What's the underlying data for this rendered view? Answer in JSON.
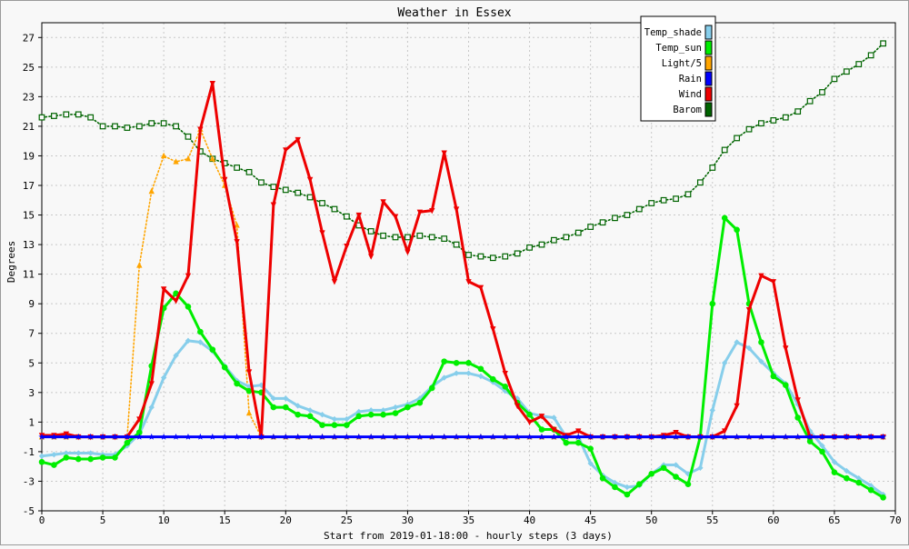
{
  "chart_data": {
    "type": "line",
    "title": "Weather in Essex",
    "xlabel": "Start from 2019-01-18:00 - hourly steps (3 days)",
    "ylabel": "Degrees",
    "xlim": [
      0,
      70
    ],
    "ylim": [
      -5,
      28
    ],
    "grid": true,
    "legend_position": "top-right",
    "x_ticks": [
      0,
      5,
      10,
      15,
      20,
      25,
      30,
      35,
      40,
      45,
      50,
      55,
      60,
      65,
      70
    ],
    "y_ticks": [
      -5,
      -3,
      -1,
      1,
      3,
      5,
      7,
      9,
      11,
      13,
      15,
      17,
      19,
      21,
      23,
      25,
      27
    ],
    "x": [
      0,
      1,
      2,
      3,
      4,
      5,
      6,
      7,
      8,
      9,
      10,
      11,
      12,
      13,
      14,
      15,
      16,
      17,
      18,
      19,
      20,
      21,
      22,
      23,
      24,
      25,
      26,
      27,
      28,
      29,
      30,
      31,
      32,
      33,
      34,
      35,
      36,
      37,
      38,
      39,
      40,
      41,
      42,
      43,
      44,
      45,
      46,
      47,
      48,
      49,
      50,
      51,
      52,
      53,
      54,
      55,
      56,
      57,
      58,
      59,
      60,
      61,
      62,
      63,
      64,
      65,
      66,
      67,
      68,
      69
    ],
    "series": [
      {
        "name": "Temp_shade",
        "color": "#87ceeb",
        "marker": "diamond",
        "line": "solid",
        "values": [
          -1.3,
          -1.2,
          -1.1,
          -1.1,
          -1.1,
          -1.2,
          -1.2,
          -0.6,
          0.2,
          2.0,
          4.0,
          5.5,
          6.5,
          6.4,
          5.8,
          4.8,
          3.8,
          3.4,
          3.5,
          2.6,
          2.6,
          2.1,
          1.8,
          1.5,
          1.2,
          1.2,
          1.7,
          1.8,
          1.8,
          2.0,
          2.2,
          2.6,
          3.4,
          4.0,
          4.3,
          4.3,
          4.1,
          3.7,
          3.1,
          2.6,
          1.6,
          1.4,
          1.3,
          0.0,
          0.0,
          -1.8,
          -2.6,
          -3.1,
          -3.4,
          -3.3,
          -2.5,
          -1.9,
          -1.9,
          -2.5,
          -2.1,
          1.8,
          5.0,
          6.4,
          6.0,
          5.1,
          4.3,
          3.6,
          2.2,
          0.4,
          -0.6,
          -1.7,
          -2.3,
          -2.8,
          -3.3,
          -3.9
        ]
      },
      {
        "name": "Temp_sun",
        "color": "#00ee00",
        "marker": "circle",
        "line": "solid",
        "values": [
          -1.7,
          -1.9,
          -1.4,
          -1.5,
          -1.5,
          -1.4,
          -1.4,
          -0.4,
          0.3,
          4.8,
          8.7,
          9.7,
          8.8,
          7.1,
          5.9,
          4.7,
          3.6,
          3.1,
          3.0,
          2.0,
          2.0,
          1.5,
          1.4,
          0.8,
          0.8,
          0.8,
          1.4,
          1.5,
          1.5,
          1.6,
          2.0,
          2.3,
          3.3,
          5.1,
          5.0,
          5.0,
          4.6,
          3.9,
          3.4,
          2.3,
          1.5,
          0.5,
          0.5,
          -0.4,
          -0.4,
          -0.8,
          -2.8,
          -3.4,
          -3.9,
          -3.2,
          -2.5,
          -2.1,
          -2.7,
          -3.2,
          0.0,
          9.0,
          14.8,
          14.0,
          9.0,
          6.4,
          4.1,
          3.5,
          1.3,
          -0.3,
          -1.0,
          -2.4,
          -2.8,
          -3.1,
          -3.6,
          -4.1
        ]
      },
      {
        "name": "Light/5",
        "color": "#ffa500",
        "marker": "triangle-up",
        "line": "dotted",
        "values": [
          0,
          0,
          0,
          0,
          0,
          0,
          0,
          0,
          11.6,
          16.6,
          19.0,
          18.6,
          18.8,
          20.8,
          18.8,
          17.0,
          14.3,
          1.6,
          0,
          0,
          0,
          0,
          0,
          0,
          0,
          0,
          0,
          0,
          0,
          0,
          0,
          0,
          0,
          0,
          0,
          0,
          0,
          0,
          0,
          0,
          0,
          0,
          0,
          0,
          0,
          0,
          0,
          0,
          0,
          0,
          0,
          0,
          0,
          0,
          0,
          0,
          0,
          0,
          0,
          0,
          0,
          0,
          0,
          0,
          0,
          0,
          0,
          0,
          0,
          0
        ]
      },
      {
        "name": "Rain",
        "color": "#0000ff",
        "marker": "star",
        "line": "solid",
        "values": [
          0,
          0,
          0,
          0,
          0,
          0,
          0,
          0,
          0,
          0,
          0,
          0,
          0,
          0,
          0,
          0,
          0,
          0,
          0,
          0,
          0,
          0,
          0,
          0,
          0,
          0,
          0,
          0,
          0,
          0,
          0,
          0,
          0,
          0,
          0,
          0,
          0,
          0,
          0,
          0,
          0,
          0,
          0,
          0,
          0,
          0,
          0,
          0,
          0,
          0,
          0,
          0,
          0,
          0,
          0,
          0,
          0,
          0,
          0,
          0,
          0,
          0,
          0,
          0,
          0,
          0,
          0,
          0,
          0,
          0
        ]
      },
      {
        "name": "Wind",
        "color": "#ee0000",
        "marker": "triangle-down",
        "line": "solid",
        "values": [
          0.1,
          0.1,
          0.2,
          0.0,
          0.0,
          0.0,
          0.0,
          0.0,
          1.2,
          3.6,
          10.0,
          9.2,
          10.9,
          20.8,
          23.9,
          17.4,
          13.2,
          4.4,
          0.0,
          15.7,
          19.4,
          20.1,
          17.4,
          13.8,
          10.5,
          12.9,
          15.0,
          12.2,
          15.9,
          14.9,
          12.5,
          15.2,
          15.3,
          19.2,
          15.4,
          10.5,
          10.1,
          7.3,
          4.3,
          2.1,
          1.0,
          1.4,
          0.5,
          0.1,
          0.4,
          0.0,
          0.0,
          0.0,
          0.0,
          0.0,
          0.0,
          0.1,
          0.3,
          0.0,
          0.0,
          0.0,
          0.4,
          2.1,
          8.6,
          10.9,
          10.5,
          6.0,
          2.5,
          0.0,
          0.0,
          0.0,
          0.0,
          0.0,
          0.0,
          0.0
        ]
      },
      {
        "name": "Barom",
        "color": "#006400",
        "marker": "square-open",
        "line": "dotted",
        "values": [
          21.6,
          21.7,
          21.8,
          21.8,
          21.6,
          21.0,
          21.0,
          20.9,
          21.0,
          21.2,
          21.2,
          21.0,
          20.3,
          19.3,
          18.8,
          18.5,
          18.2,
          17.9,
          17.2,
          16.9,
          16.7,
          16.5,
          16.2,
          15.8,
          15.4,
          14.9,
          14.3,
          13.9,
          13.6,
          13.5,
          13.5,
          13.6,
          13.5,
          13.4,
          13.0,
          12.3,
          12.2,
          12.1,
          12.2,
          12.4,
          12.8,
          13.0,
          13.3,
          13.5,
          13.8,
          14.2,
          14.5,
          14.8,
          15.0,
          15.4,
          15.8,
          16.0,
          16.1,
          16.4,
          17.2,
          18.2,
          19.4,
          20.2,
          20.8,
          21.2,
          21.4,
          21.6,
          22.0,
          22.7,
          23.3,
          24.2,
          24.7,
          25.2,
          25.8,
          26.6
        ]
      }
    ]
  }
}
